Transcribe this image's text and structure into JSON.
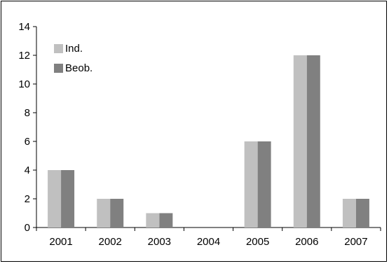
{
  "chart_data": {
    "type": "bar",
    "categories": [
      "2001",
      "2002",
      "2003",
      "2004",
      "2005",
      "2006",
      "2007"
    ],
    "series": [
      {
        "name": "Ind.",
        "color": "#c0c0c0",
        "values": [
          4,
          2,
          1,
          0,
          6,
          12,
          2
        ]
      },
      {
        "name": "Beob.",
        "color": "#808080",
        "values": [
          4,
          2,
          1,
          0,
          6,
          12,
          2
        ]
      }
    ],
    "title": "",
    "xlabel": "",
    "ylabel": "",
    "ylim": [
      0,
      14
    ],
    "yticks": [
      0,
      2,
      4,
      6,
      8,
      10,
      12,
      14
    ],
    "grid": false,
    "legend_position": "top-left"
  }
}
